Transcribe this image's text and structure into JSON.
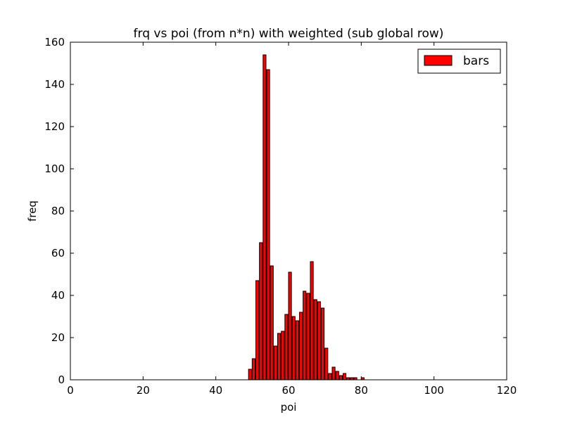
{
  "chart_data": {
    "type": "bar",
    "title": "frq vs poi (from n*n) with weighted (sub global row)",
    "xlabel": "poi",
    "ylabel": "freq",
    "xlim": [
      0,
      120
    ],
    "ylim": [
      0,
      160
    ],
    "xticks": [
      "0",
      "20",
      "40",
      "60",
      "80",
      "100",
      "120"
    ],
    "yticks": [
      "0",
      "20",
      "40",
      "60",
      "80",
      "100",
      "120",
      "140",
      "160"
    ],
    "legend": {
      "label": "bars",
      "position": "top-right"
    },
    "bar_color": "#ff0000",
    "grid": false,
    "series": [
      {
        "name": "bars",
        "x": [
          49,
          50,
          51,
          52,
          53,
          54,
          55,
          56,
          57,
          58,
          59,
          60,
          61,
          62,
          63,
          64,
          65,
          66,
          67,
          68,
          69,
          70,
          71,
          72,
          73,
          74,
          75,
          76,
          77,
          78,
          80
        ],
        "values": [
          5,
          10,
          47,
          65,
          154,
          147,
          54,
          16,
          22,
          23,
          31,
          51,
          30,
          28,
          32,
          42,
          41,
          56,
          38,
          37,
          34,
          15,
          3,
          6,
          4,
          2,
          3,
          1,
          1,
          1,
          1
        ]
      }
    ]
  }
}
